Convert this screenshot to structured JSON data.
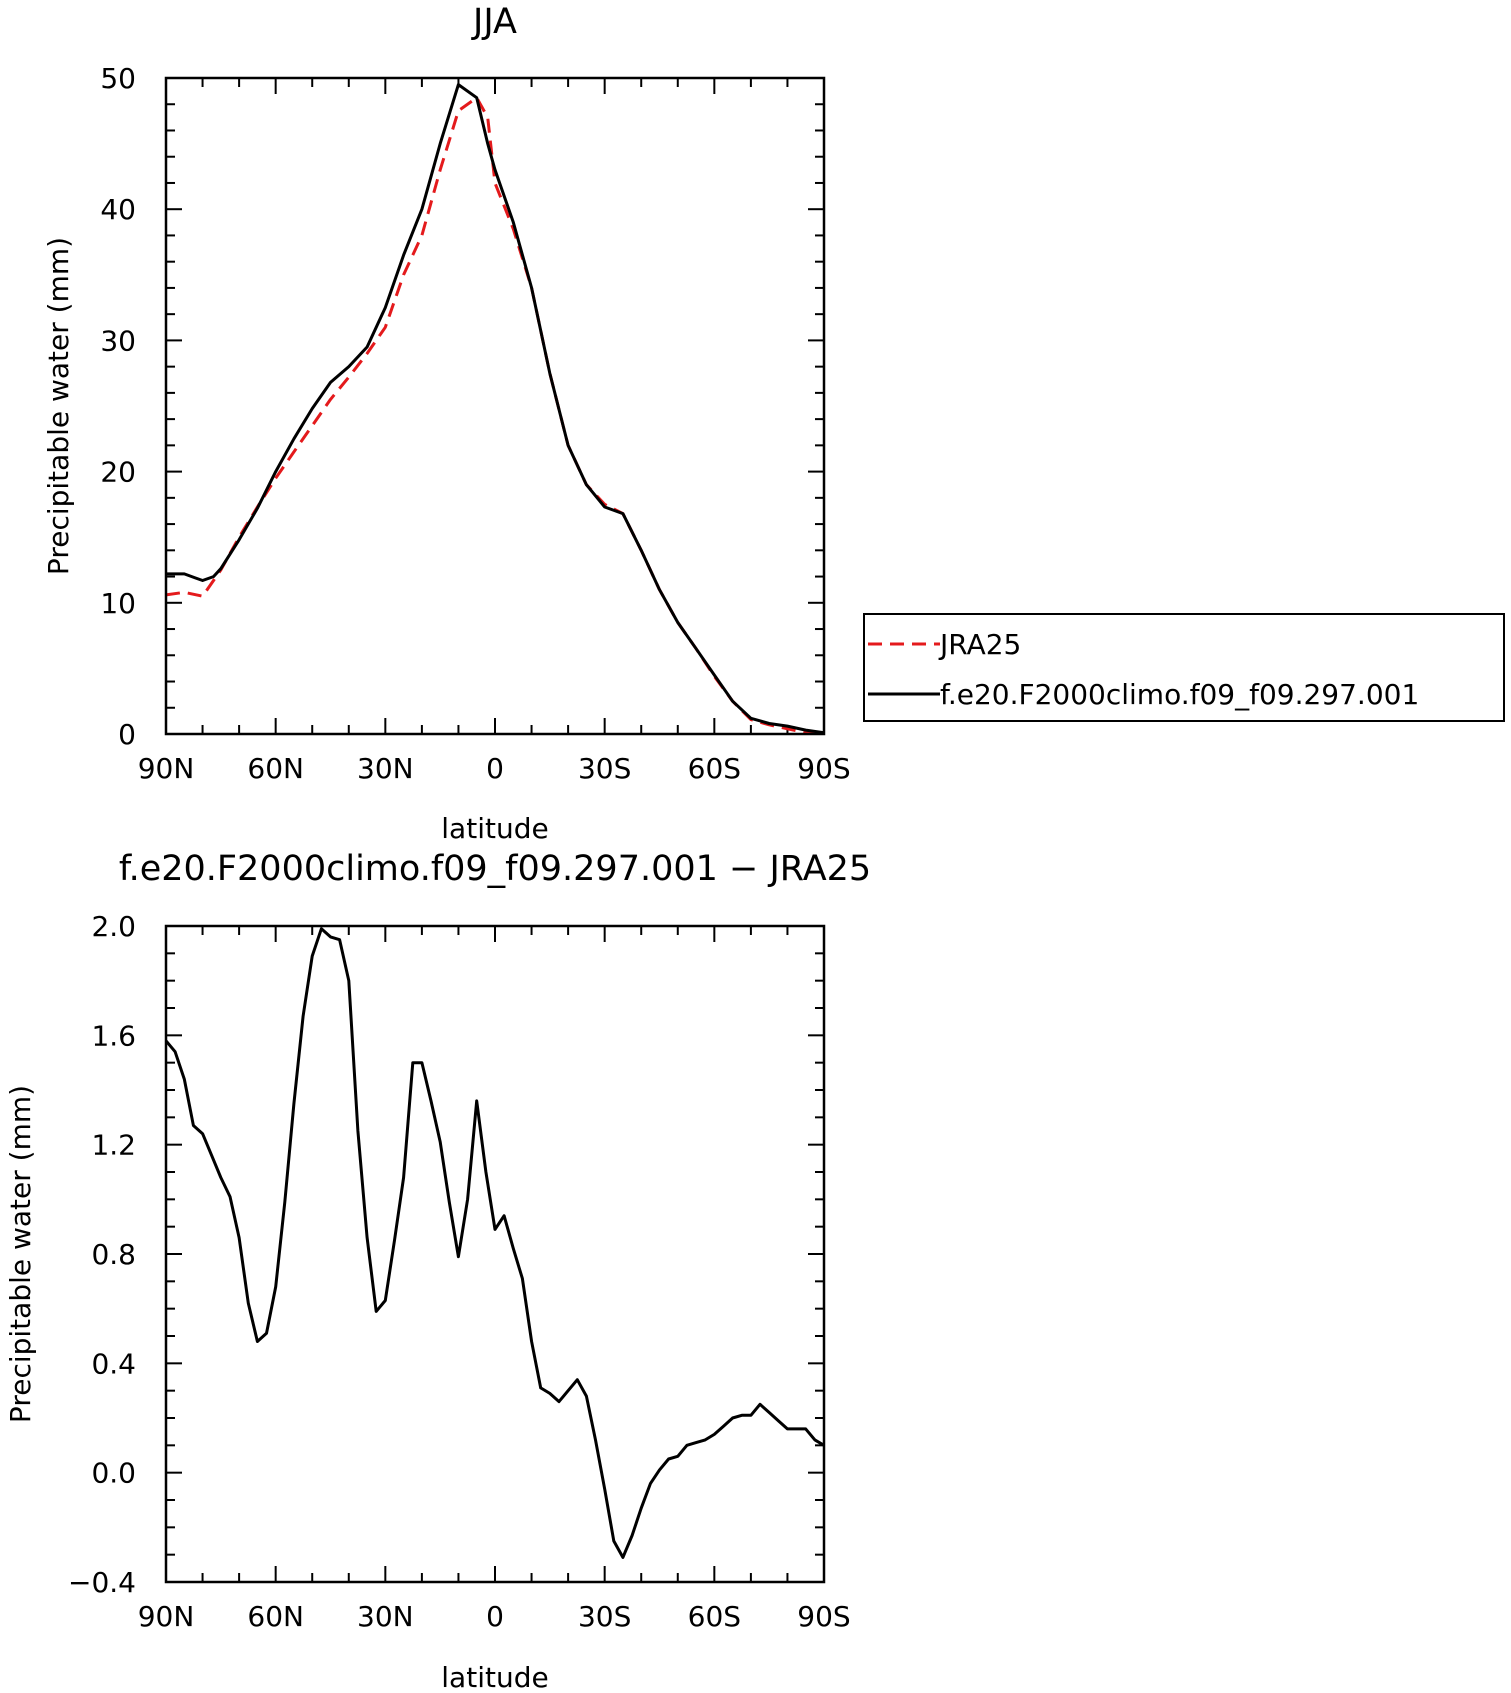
{
  "colors": {
    "jra25": "#e41a1c",
    "model": "#000000"
  },
  "chart_data": [
    {
      "type": "line",
      "title": "JJA",
      "xlabel": "latitude",
      "ylabel": "Precipitable water (mm)",
      "xlim": [
        90,
        -90
      ],
      "ylim": [
        0,
        50
      ],
      "x_tick_values": [
        90,
        60,
        30,
        0,
        -30,
        -60,
        -90
      ],
      "x_tick_labels": [
        "90N",
        "60N",
        "30N",
        "0",
        "30S",
        "60S",
        "90S"
      ],
      "y_tick_values": [
        0,
        10,
        20,
        30,
        40,
        50
      ],
      "y_tick_labels": [
        "0",
        "10",
        "20",
        "30",
        "40",
        "50"
      ],
      "legend_position": "right",
      "series": [
        {
          "name": "JRA25",
          "style": "dashed",
          "color": "#e41a1c",
          "x": [
            90,
            85,
            80,
            75,
            70,
            65,
            60,
            55,
            50,
            45,
            40,
            35,
            30,
            25,
            20,
            15,
            10,
            5,
            2,
            0,
            -5,
            -10,
            -15,
            -20,
            -25,
            -30,
            -35,
            -40,
            -45,
            -50,
            -55,
            -60,
            -65,
            -70,
            -75,
            -80,
            -85,
            -90
          ],
          "y": [
            10.6,
            10.8,
            10.5,
            12.5,
            15.0,
            17.3,
            19.5,
            21.5,
            23.5,
            25.5,
            27.2,
            29.0,
            31.0,
            35.0,
            38.0,
            43.0,
            47.5,
            48.5,
            47.0,
            42.0,
            38.5,
            34.0,
            27.5,
            22.0,
            19.0,
            17.5,
            16.8,
            14.0,
            11.0,
            8.5,
            6.5,
            4.4,
            2.5,
            1.1,
            0.7,
            0.4,
            0.1,
            0.0
          ]
        },
        {
          "name": "f.e20.F2000climo.f09_f09.297.001",
          "style": "solid",
          "color": "#000000",
          "x": [
            90,
            85,
            82,
            80,
            77,
            75,
            70,
            65,
            60,
            55,
            50,
            45,
            40,
            35,
            30,
            25,
            20,
            15,
            10,
            5,
            2,
            0,
            -5,
            -10,
            -15,
            -20,
            -25,
            -30,
            -35,
            -40,
            -45,
            -50,
            -55,
            -60,
            -65,
            -70,
            -75,
            -80,
            -85,
            -90
          ],
          "y": [
            12.2,
            12.2,
            11.9,
            11.7,
            12.0,
            12.6,
            14.8,
            17.2,
            20.0,
            22.5,
            24.8,
            26.8,
            28.0,
            29.5,
            32.5,
            36.5,
            40.0,
            45.0,
            49.5,
            48.5,
            45.0,
            43.0,
            39.0,
            34.0,
            27.5,
            22.0,
            19.0,
            17.3,
            16.8,
            14.0,
            11.0,
            8.5,
            6.5,
            4.5,
            2.5,
            1.2,
            0.8,
            0.6,
            0.3,
            0.1
          ]
        }
      ]
    },
    {
      "type": "line",
      "title": "f.e20.F2000climo.f09_f09.297.001 − JRA25",
      "xlabel": "latitude",
      "ylabel": "Precipitable water (mm)",
      "xlim": [
        90,
        -90
      ],
      "ylim": [
        -0.4,
        2.0
      ],
      "x_tick_values": [
        90,
        60,
        30,
        0,
        -30,
        -60,
        -90
      ],
      "x_tick_labels": [
        "90N",
        "60N",
        "30N",
        "0",
        "30S",
        "60S",
        "90S"
      ],
      "y_tick_values": [
        -0.4,
        0.0,
        0.4,
        0.8,
        1.2,
        1.6,
        2.0
      ],
      "y_tick_labels": [
        "−0.4",
        "0.0",
        "0.4",
        "0.8",
        "1.2",
        "1.6",
        "2.0"
      ],
      "series": [
        {
          "style": "solid",
          "color": "#000000",
          "x": [
            90,
            87.5,
            85,
            82.5,
            80,
            77.5,
            75,
            72.5,
            70,
            67.5,
            65,
            62.5,
            60,
            57.5,
            55,
            52.5,
            50,
            47.5,
            45,
            42.5,
            40,
            37.5,
            35,
            32.5,
            30,
            27.5,
            25,
            22.5,
            20,
            17.5,
            15,
            12.5,
            10,
            7.5,
            5,
            2.5,
            0,
            -2.5,
            -5,
            -7.5,
            -10,
            -12.5,
            -15,
            -17.5,
            -20,
            -22.5,
            -25,
            -27.5,
            -30,
            -32.5,
            -35,
            -37.5,
            -40,
            -42.5,
            -45,
            -47.5,
            -50,
            -52.5,
            -55,
            -57.5,
            -60,
            -62.5,
            -65,
            -67.5,
            -70,
            -72.5,
            -75,
            -77.5,
            -80,
            -82.5,
            -85,
            -87.5,
            -90
          ],
          "y": [
            1.58,
            1.54,
            1.44,
            1.27,
            1.24,
            1.16,
            1.08,
            1.01,
            0.86,
            0.62,
            0.48,
            0.51,
            0.68,
            0.99,
            1.35,
            1.67,
            1.89,
            1.99,
            1.96,
            1.95,
            1.8,
            1.25,
            0.86,
            0.59,
            0.63,
            0.85,
            1.08,
            1.5,
            1.5,
            1.36,
            1.21,
            0.99,
            0.79,
            1.0,
            1.36,
            1.1,
            0.89,
            0.94,
            0.82,
            0.71,
            0.48,
            0.31,
            0.29,
            0.26,
            0.3,
            0.34,
            0.28,
            0.12,
            -0.06,
            -0.25,
            -0.31,
            -0.23,
            -0.13,
            -0.04,
            0.01,
            0.05,
            0.06,
            0.1,
            0.11,
            0.12,
            0.14,
            0.17,
            0.2,
            0.21,
            0.21,
            0.25,
            0.22,
            0.19,
            0.16,
            0.16,
            0.16,
            0.12,
            0.1
          ]
        }
      ]
    }
  ]
}
